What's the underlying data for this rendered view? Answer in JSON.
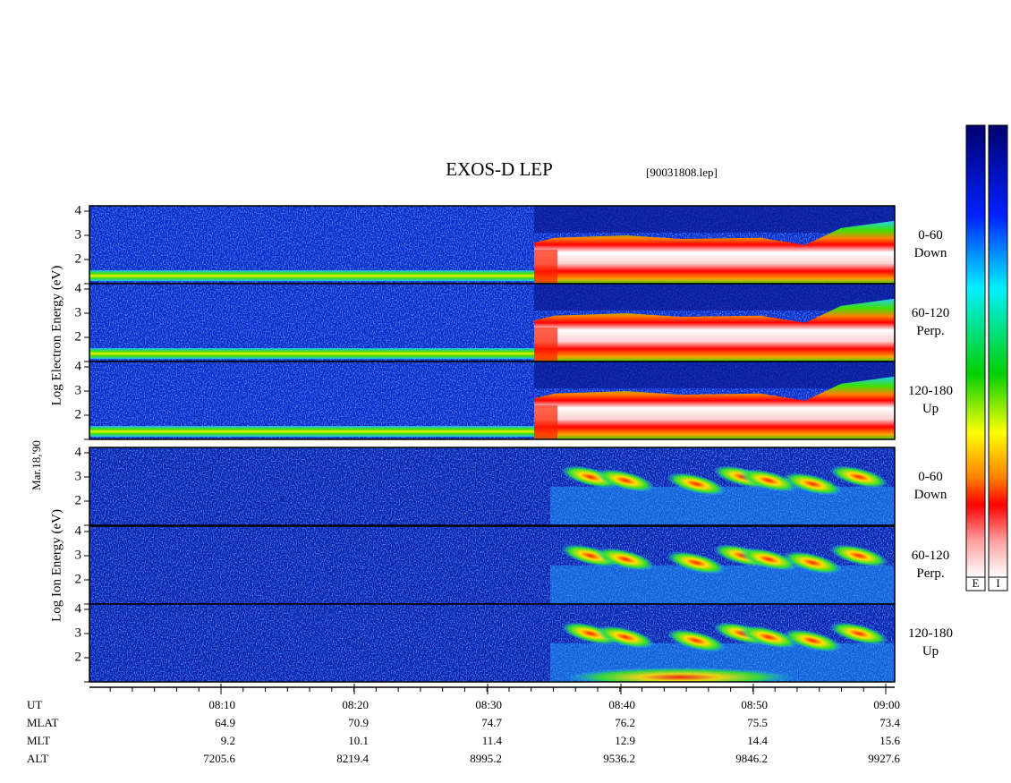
{
  "title": "EXOS-D LEP",
  "file": "[90031808.lep]",
  "colorbars": [
    "E",
    "I"
  ],
  "electron_axis_label": "Log Electron Energy (eV)",
  "ion_axis_label": "Log Ion Energy (eV)",
  "date": "Mar.18,'90",
  "energy_ticks": [
    2,
    3,
    4
  ],
  "panels": [
    {
      "pitch": "0-60",
      "direction": "Down"
    },
    {
      "pitch": "60-120",
      "direction": "Perp."
    },
    {
      "pitch": "120-180",
      "direction": "Up"
    },
    {
      "pitch": "0-60",
      "direction": "Down"
    },
    {
      "pitch": "60-120",
      "direction": "Perp."
    },
    {
      "pitch": "120-180",
      "direction": "Up"
    }
  ],
  "orbit_table": [
    [
      "UT",
      "08:10",
      "08:20",
      "08:30",
      "08:40",
      "08:50",
      "09:00"
    ],
    [
      "MLAT",
      "64.9",
      "70.9",
      "74.7",
      "76.2",
      "75.5",
      "73.4"
    ],
    [
      "MLT",
      "9.2",
      "10.1",
      "11.4",
      "12.9",
      "14.4",
      "15.6"
    ],
    [
      "ALT",
      "7205.6",
      "8219.4",
      "8995.2",
      "9536.2",
      "9846.2",
      "9927.6"
    ]
  ]
}
